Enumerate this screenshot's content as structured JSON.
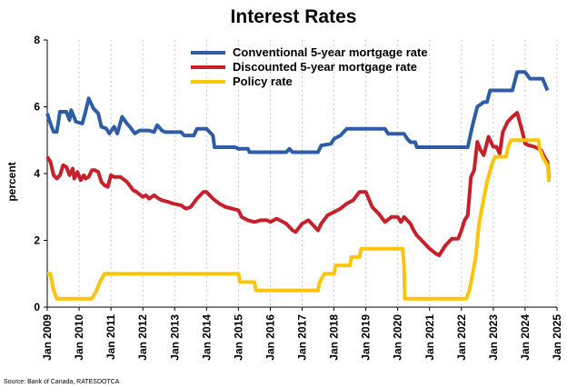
{
  "chart_data": {
    "type": "line",
    "title": "Interest Rates",
    "ylabel": "percent",
    "xlabel": "",
    "source": "Source: Bank of Canada, RATESDOTCA",
    "ylim": [
      0,
      8
    ],
    "yticks": [
      0,
      2,
      4,
      6,
      8
    ],
    "xlim": [
      2009,
      2025
    ],
    "xticks": [
      {
        "value": 2009,
        "label": "Jan 2009"
      },
      {
        "value": 2010,
        "label": "Jan 2010"
      },
      {
        "value": 2011,
        "label": "Jan 2011"
      },
      {
        "value": 2012,
        "label": "Jan 2012"
      },
      {
        "value": 2013,
        "label": "Jan 2013"
      },
      {
        "value": 2014,
        "label": "Jan 2014"
      },
      {
        "value": 2015,
        "label": "Jan 2015"
      },
      {
        "value": 2016,
        "label": "Jan 2016"
      },
      {
        "value": 2017,
        "label": "Jan 2017"
      },
      {
        "value": 2018,
        "label": "Jan 2018"
      },
      {
        "value": 2019,
        "label": "Jan 2019"
      },
      {
        "value": 2020,
        "label": "Jan 2020"
      },
      {
        "value": 2021,
        "label": "Jan 2021"
      },
      {
        "value": 2022,
        "label": "Jan 2022"
      },
      {
        "value": 2023,
        "label": "Jan 2023"
      },
      {
        "value": 2024,
        "label": "Jan 2024"
      },
      {
        "value": 2025,
        "label": "Jan 2025"
      }
    ],
    "grid": "vertical-dotted",
    "legend_position": "top-center",
    "series": [
      {
        "name": "Conventional 5-year mortgage rate",
        "color": "#2E5DA8",
        "points": [
          [
            2009.0,
            5.8
          ],
          [
            2009.1,
            5.5
          ],
          [
            2009.2,
            5.25
          ],
          [
            2009.3,
            5.25
          ],
          [
            2009.4,
            5.85
          ],
          [
            2009.6,
            5.85
          ],
          [
            2009.7,
            5.6
          ],
          [
            2009.75,
            5.9
          ],
          [
            2009.9,
            5.55
          ],
          [
            2010.1,
            5.5
          ],
          [
            2010.2,
            5.85
          ],
          [
            2010.3,
            6.25
          ],
          [
            2010.45,
            5.95
          ],
          [
            2010.6,
            5.8
          ],
          [
            2010.7,
            5.4
          ],
          [
            2010.85,
            5.35
          ],
          [
            2010.95,
            5.2
          ],
          [
            2011.1,
            5.4
          ],
          [
            2011.2,
            5.2
          ],
          [
            2011.35,
            5.7
          ],
          [
            2011.5,
            5.5
          ],
          [
            2011.6,
            5.39
          ],
          [
            2011.75,
            5.2
          ],
          [
            2011.9,
            5.29
          ],
          [
            2012.2,
            5.29
          ],
          [
            2012.35,
            5.24
          ],
          [
            2012.45,
            5.45
          ],
          [
            2012.6,
            5.29
          ],
          [
            2012.7,
            5.24
          ],
          [
            2013.2,
            5.24
          ],
          [
            2013.3,
            5.14
          ],
          [
            2013.6,
            5.14
          ],
          [
            2013.7,
            5.34
          ],
          [
            2014.0,
            5.34
          ],
          [
            2014.2,
            5.14
          ],
          [
            2014.25,
            4.79
          ],
          [
            2014.9,
            4.79
          ],
          [
            2015.0,
            4.74
          ],
          [
            2015.3,
            4.74
          ],
          [
            2015.35,
            4.64
          ],
          [
            2016.5,
            4.64
          ],
          [
            2016.6,
            4.74
          ],
          [
            2016.7,
            4.64
          ],
          [
            2017.5,
            4.64
          ],
          [
            2017.6,
            4.84
          ],
          [
            2017.9,
            4.89
          ],
          [
            2018.0,
            5.04
          ],
          [
            2018.2,
            5.14
          ],
          [
            2018.4,
            5.34
          ],
          [
            2019.6,
            5.34
          ],
          [
            2019.7,
            5.19
          ],
          [
            2020.2,
            5.19
          ],
          [
            2020.3,
            5.04
          ],
          [
            2020.4,
            4.94
          ],
          [
            2020.55,
            4.94
          ],
          [
            2020.6,
            4.79
          ],
          [
            2022.2,
            4.79
          ],
          [
            2022.35,
            5.45
          ],
          [
            2022.5,
            6.0
          ],
          [
            2022.7,
            6.14
          ],
          [
            2022.8,
            6.14
          ],
          [
            2022.9,
            6.49
          ],
          [
            2023.6,
            6.49
          ],
          [
            2023.75,
            7.04
          ],
          [
            2024.0,
            7.04
          ],
          [
            2024.15,
            6.84
          ],
          [
            2024.55,
            6.84
          ],
          [
            2024.7,
            6.49
          ]
        ]
      },
      {
        "name": "Discounted 5-year mortgage rate",
        "color": "#C8202A",
        "points": [
          [
            2009.0,
            4.5
          ],
          [
            2009.1,
            4.35
          ],
          [
            2009.2,
            3.95
          ],
          [
            2009.3,
            3.85
          ],
          [
            2009.4,
            3.95
          ],
          [
            2009.5,
            4.25
          ],
          [
            2009.6,
            4.2
          ],
          [
            2009.7,
            3.95
          ],
          [
            2009.8,
            4.15
          ],
          [
            2009.85,
            3.85
          ],
          [
            2009.95,
            4.05
          ],
          [
            2010.05,
            3.8
          ],
          [
            2010.15,
            3.95
          ],
          [
            2010.2,
            3.85
          ],
          [
            2010.3,
            3.9
          ],
          [
            2010.4,
            4.1
          ],
          [
            2010.5,
            4.1
          ],
          [
            2010.6,
            4.05
          ],
          [
            2010.7,
            3.75
          ],
          [
            2010.8,
            3.65
          ],
          [
            2010.9,
            3.6
          ],
          [
            2011.0,
            3.95
          ],
          [
            2011.1,
            3.9
          ],
          [
            2011.3,
            3.9
          ],
          [
            2011.5,
            3.75
          ],
          [
            2011.7,
            3.5
          ],
          [
            2011.8,
            3.45
          ],
          [
            2012.0,
            3.3
          ],
          [
            2012.1,
            3.35
          ],
          [
            2012.2,
            3.25
          ],
          [
            2012.35,
            3.35
          ],
          [
            2012.5,
            3.25
          ],
          [
            2012.6,
            3.2
          ],
          [
            2012.8,
            3.15
          ],
          [
            2012.95,
            3.1
          ],
          [
            2013.2,
            3.05
          ],
          [
            2013.35,
            2.95
          ],
          [
            2013.5,
            3.0
          ],
          [
            2013.7,
            3.25
          ],
          [
            2013.9,
            3.45
          ],
          [
            2014.0,
            3.45
          ],
          [
            2014.2,
            3.25
          ],
          [
            2014.4,
            3.1
          ],
          [
            2014.6,
            3.0
          ],
          [
            2014.8,
            2.95
          ],
          [
            2015.0,
            2.9
          ],
          [
            2015.1,
            2.7
          ],
          [
            2015.3,
            2.6
          ],
          [
            2015.5,
            2.55
          ],
          [
            2015.7,
            2.6
          ],
          [
            2015.9,
            2.6
          ],
          [
            2016.0,
            2.55
          ],
          [
            2016.2,
            2.65
          ],
          [
            2016.5,
            2.5
          ],
          [
            2016.7,
            2.3
          ],
          [
            2016.8,
            2.25
          ],
          [
            2017.0,
            2.5
          ],
          [
            2017.2,
            2.6
          ],
          [
            2017.5,
            2.3
          ],
          [
            2017.6,
            2.5
          ],
          [
            2017.8,
            2.75
          ],
          [
            2018.0,
            2.85
          ],
          [
            2018.2,
            2.95
          ],
          [
            2018.4,
            3.1
          ],
          [
            2018.6,
            3.2
          ],
          [
            2018.8,
            3.45
          ],
          [
            2019.0,
            3.45
          ],
          [
            2019.2,
            3.0
          ],
          [
            2019.4,
            2.8
          ],
          [
            2019.6,
            2.55
          ],
          [
            2019.8,
            2.7
          ],
          [
            2020.0,
            2.7
          ],
          [
            2020.1,
            2.55
          ],
          [
            2020.2,
            2.7
          ],
          [
            2020.4,
            2.5
          ],
          [
            2020.5,
            2.3
          ],
          [
            2020.6,
            2.15
          ],
          [
            2020.8,
            1.95
          ],
          [
            2021.0,
            1.75
          ],
          [
            2021.2,
            1.6
          ],
          [
            2021.3,
            1.55
          ],
          [
            2021.5,
            1.85
          ],
          [
            2021.7,
            2.05
          ],
          [
            2021.9,
            2.05
          ],
          [
            2022.0,
            2.3
          ],
          [
            2022.1,
            2.6
          ],
          [
            2022.2,
            2.75
          ],
          [
            2022.3,
            3.9
          ],
          [
            2022.4,
            4.1
          ],
          [
            2022.5,
            4.95
          ],
          [
            2022.6,
            4.7
          ],
          [
            2022.7,
            4.55
          ],
          [
            2022.85,
            5.1
          ],
          [
            2023.0,
            4.8
          ],
          [
            2023.1,
            4.8
          ],
          [
            2023.2,
            4.6
          ],
          [
            2023.3,
            5.25
          ],
          [
            2023.45,
            5.55
          ],
          [
            2023.6,
            5.7
          ],
          [
            2023.75,
            5.82
          ],
          [
            2023.9,
            5.3
          ],
          [
            2024.0,
            4.9
          ],
          [
            2024.1,
            4.85
          ],
          [
            2024.3,
            4.8
          ],
          [
            2024.5,
            4.7
          ],
          [
            2024.6,
            4.5
          ],
          [
            2024.7,
            4.35
          ],
          [
            2024.75,
            3.85
          ]
        ]
      },
      {
        "name": "Policy rate",
        "color": "#FCC40A",
        "points": [
          [
            2009.0,
            1.0
          ],
          [
            2009.1,
            1.0
          ],
          [
            2009.2,
            0.5
          ],
          [
            2009.3,
            0.25
          ],
          [
            2010.4,
            0.25
          ],
          [
            2010.55,
            0.5
          ],
          [
            2010.65,
            0.75
          ],
          [
            2010.8,
            1.0
          ],
          [
            2015.0,
            1.0
          ],
          [
            2015.05,
            0.75
          ],
          [
            2015.5,
            0.75
          ],
          [
            2015.55,
            0.5
          ],
          [
            2017.5,
            0.5
          ],
          [
            2017.55,
            0.75
          ],
          [
            2017.7,
            1.0
          ],
          [
            2018.0,
            1.0
          ],
          [
            2018.05,
            1.25
          ],
          [
            2018.5,
            1.25
          ],
          [
            2018.55,
            1.5
          ],
          [
            2018.8,
            1.5
          ],
          [
            2018.85,
            1.75
          ],
          [
            2020.15,
            1.75
          ],
          [
            2020.2,
            1.25
          ],
          [
            2020.22,
            0.25
          ],
          [
            2022.15,
            0.25
          ],
          [
            2022.25,
            0.5
          ],
          [
            2022.35,
            1.0
          ],
          [
            2022.45,
            1.5
          ],
          [
            2022.55,
            2.5
          ],
          [
            2022.7,
            3.25
          ],
          [
            2022.8,
            3.75
          ],
          [
            2022.95,
            4.25
          ],
          [
            2023.05,
            4.5
          ],
          [
            2023.4,
            4.5
          ],
          [
            2023.45,
            4.75
          ],
          [
            2023.55,
            5.0
          ],
          [
            2024.42,
            5.0
          ],
          [
            2024.45,
            4.75
          ],
          [
            2024.55,
            4.5
          ],
          [
            2024.7,
            4.25
          ],
          [
            2024.75,
            3.75
          ]
        ]
      }
    ]
  }
}
